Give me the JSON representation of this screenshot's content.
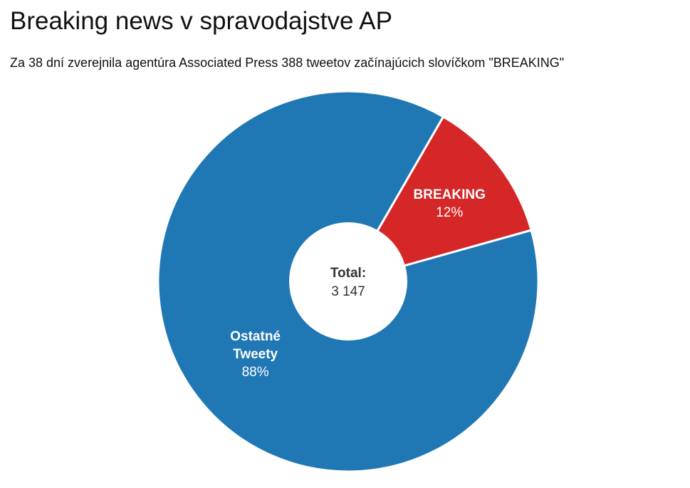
{
  "chart_data": {
    "type": "pie",
    "title": "Breaking news v spravodajstve AP",
    "subtitle": "Za 38 dní zverejnila agentúra Associated Press 388 tweetov začínajúcich slovíčkom \"BREAKING\"",
    "donut": true,
    "center_label": {
      "title": "Total:",
      "value": "3 147"
    },
    "total": 3147,
    "slices": [
      {
        "label_lines": [
          "BREAKING"
        ],
        "value": 388,
        "percent_label": "12%",
        "color": "#d62728"
      },
      {
        "label_lines": [
          "Ostatné",
          "Tweety"
        ],
        "value": 2759,
        "percent_label": "88%",
        "color": "#1f77b4"
      }
    ],
    "legend": "none"
  }
}
